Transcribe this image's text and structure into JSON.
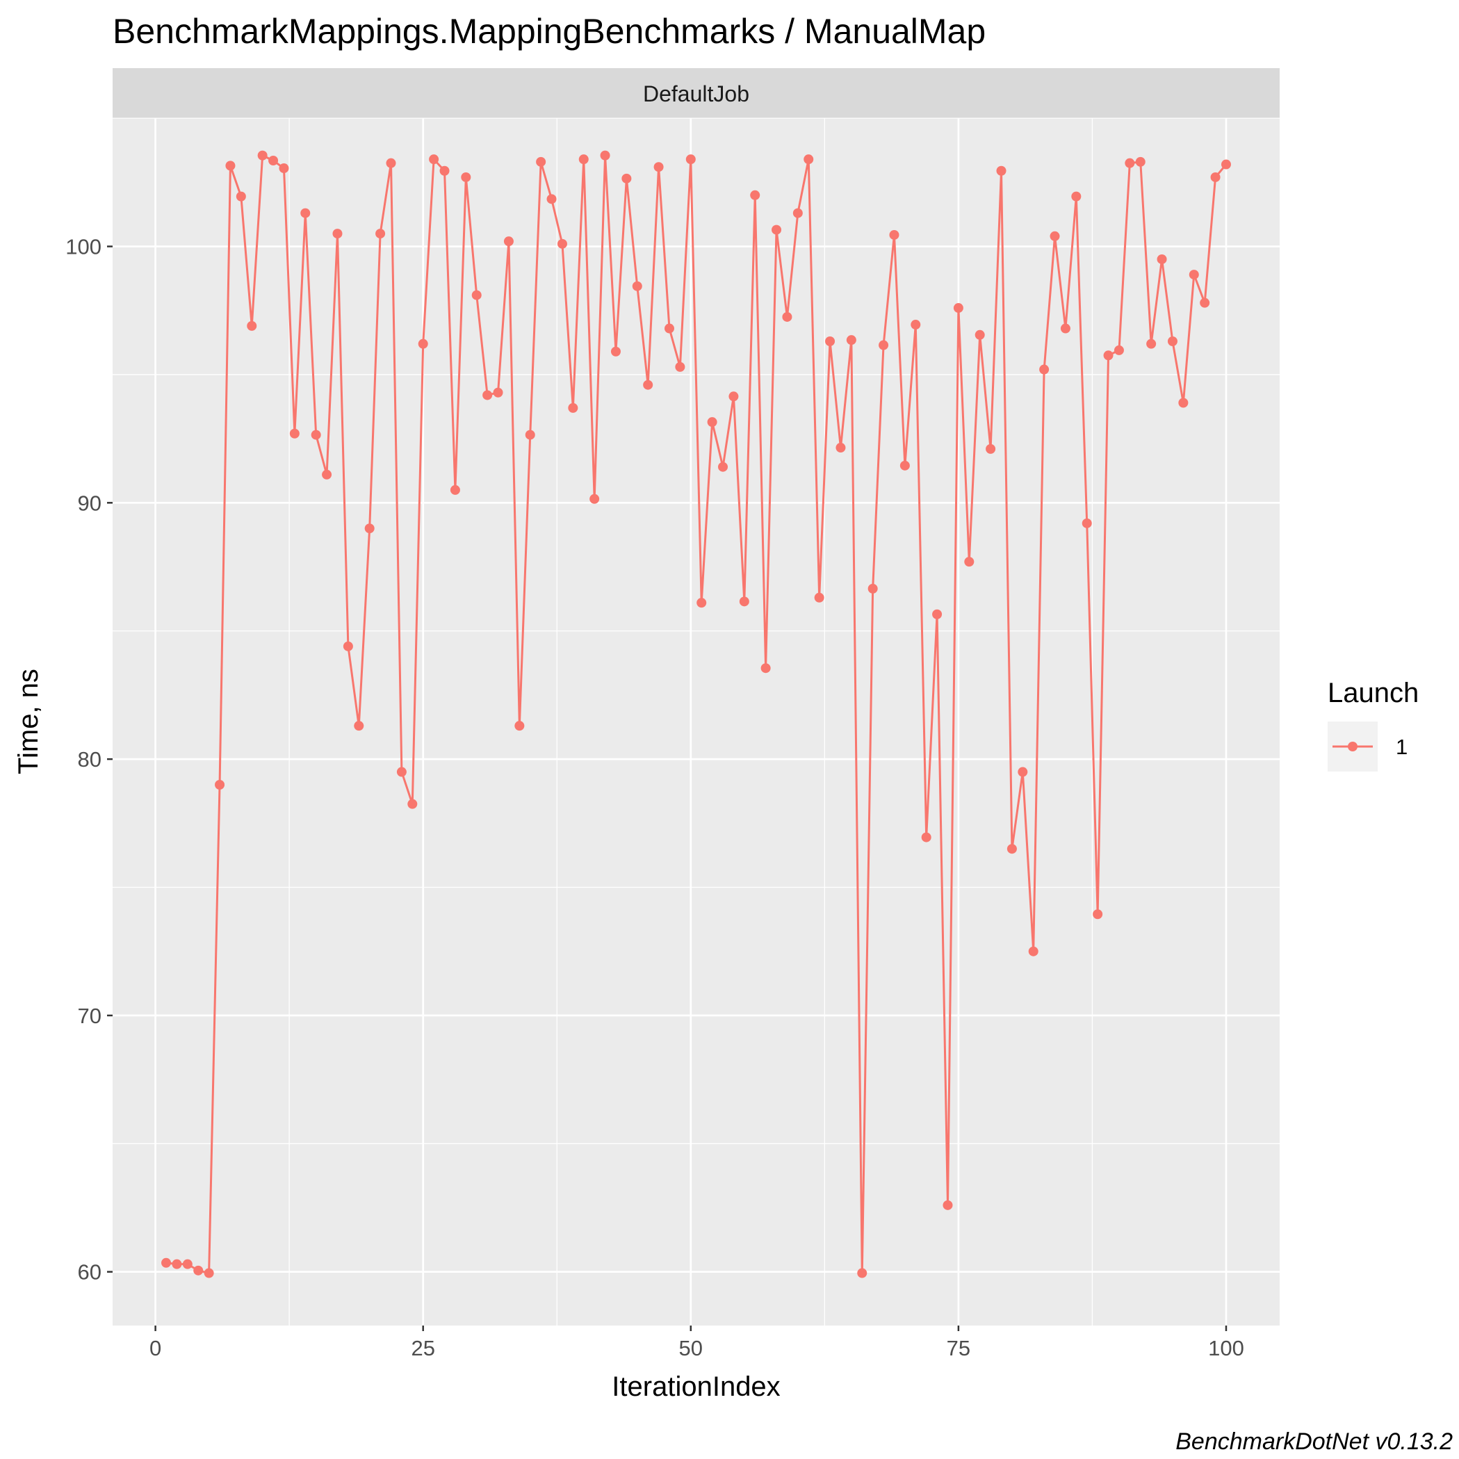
{
  "chart_data": {
    "type": "line",
    "title": "BenchmarkMappings.MappingBenchmarks / ManualMap",
    "facet": "DefaultJob",
    "xlabel": "IterationIndex",
    "ylabel": "Time, ns",
    "xlim": [
      -4,
      105
    ],
    "ylim": [
      57904,
      105004
    ],
    "x_ticks": [
      0,
      25,
      50,
      75,
      100
    ],
    "x_tick_labels": [
      "0",
      "25",
      "50",
      "75",
      "100"
    ],
    "y_ticks": [
      60000,
      70000,
      80000,
      90000,
      100000
    ],
    "y_tick_labels": [
      "60",
      "70",
      "80",
      "90",
      "100"
    ],
    "grid": true,
    "legend": {
      "title": "Launch",
      "placement": "right",
      "entries": [
        "1"
      ]
    },
    "caption": "BenchmarkDotNet v0.13.2",
    "colors": {
      "series": "#F8766D",
      "panel": "#EBEBEB",
      "strip": "#D9D9D9",
      "grid": "#FFFFFF"
    },
    "series": [
      {
        "name": "1",
        "x": [
          1,
          2,
          3,
          4,
          5,
          6,
          7,
          8,
          9,
          10,
          11,
          12,
          13,
          14,
          15,
          16,
          17,
          18,
          19,
          20,
          21,
          22,
          23,
          24,
          25,
          26,
          27,
          28,
          29,
          30,
          31,
          32,
          33,
          34,
          35,
          36,
          37,
          38,
          39,
          40,
          41,
          42,
          43,
          44,
          45,
          46,
          47,
          48,
          49,
          50,
          51,
          52,
          53,
          54,
          55,
          56,
          57,
          58,
          59,
          60,
          61,
          62,
          63,
          64,
          65,
          66,
          67,
          68,
          69,
          70,
          71,
          72,
          73,
          74,
          75,
          76,
          77,
          78,
          79,
          80,
          81,
          82,
          83,
          84,
          85,
          86,
          87,
          88,
          89,
          90,
          91,
          92,
          93,
          94,
          95,
          96,
          97,
          98,
          99,
          100
        ],
        "values": [
          60350,
          60300,
          60300,
          60050,
          59950,
          79000,
          103150,
          101950,
          96900,
          103550,
          103350,
          103050,
          92700,
          101300,
          92650,
          91100,
          100500,
          84400,
          81300,
          89000,
          100500,
          103250,
          79500,
          78250,
          96200,
          103400,
          102950,
          90500,
          102700,
          98100,
          94200,
          94300,
          100200,
          81300,
          92650,
          103300,
          101850,
          100100,
          93700,
          103400,
          90150,
          103550,
          95900,
          102650,
          98450,
          94600,
          103100,
          96800,
          95300,
          103400,
          86100,
          93150,
          91400,
          94150,
          86150,
          102000,
          83550,
          100650,
          97250,
          101300,
          103400,
          86300,
          96300,
          92150,
          96350,
          59950,
          86650,
          96150,
          100450,
          91450,
          96950,
          76950,
          85650,
          62600,
          97600,
          87700,
          96550,
          92100,
          102950,
          76500,
          79500,
          72500,
          95200,
          100400,
          96800,
          101950,
          89200,
          73950,
          95750,
          95950,
          103250,
          103300,
          96200,
          99500,
          96300,
          93900,
          98900,
          97800,
          102700,
          103200
        ]
      }
    ]
  }
}
